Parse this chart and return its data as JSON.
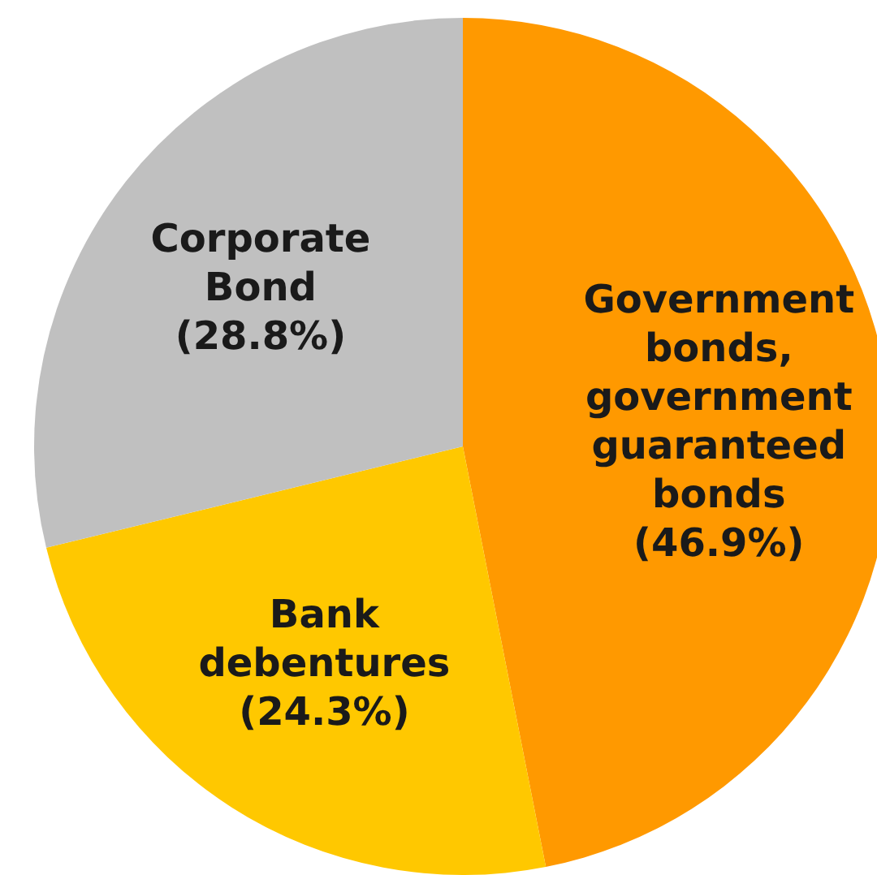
{
  "chart_data": {
    "type": "pie",
    "categories": [
      "Government bonds, government guaranteed bonds",
      "Bank debentures",
      "Corporate Bond"
    ],
    "values": [
      46.9,
      24.3,
      28.8
    ],
    "colors": [
      "#ff9900",
      "#ffc800",
      "#c0c0c0"
    ],
    "value_labels": [
      "(46.9%)",
      "(24.3%)",
      "(28.8%)"
    ],
    "legend": false
  }
}
